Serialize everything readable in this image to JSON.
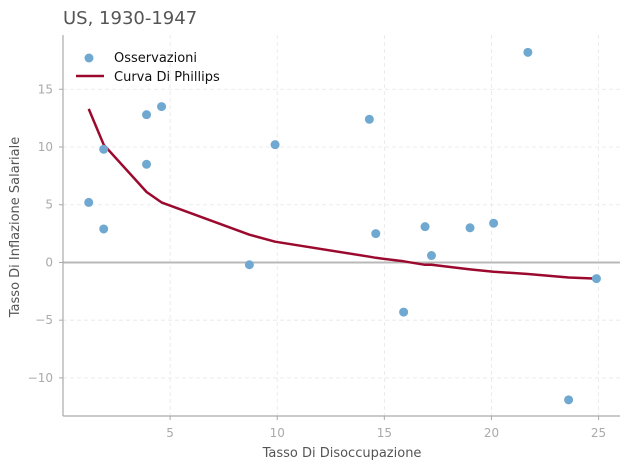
{
  "chart_data": {
    "type": "scatter",
    "title": "US, 1930-1947",
    "xlabel": "Tasso Di Disoccupazione",
    "ylabel": "Tasso Di Inflazione Salariale",
    "xlim": [
      0,
      26
    ],
    "ylim": [
      -13.3,
      19.7
    ],
    "x_ticks": [
      5,
      10,
      15,
      20,
      25
    ],
    "y_ticks": [
      -10,
      -5,
      0,
      5,
      10,
      15
    ],
    "grid": true,
    "legend_position": "top-left",
    "reference_line_y": 0,
    "series": [
      {
        "name": "Osservazioni",
        "kind": "scatter",
        "color": "#6fa8d0",
        "points": [
          {
            "x": 1.2,
            "y": 5.2
          },
          {
            "x": 1.9,
            "y": 9.8
          },
          {
            "x": 1.9,
            "y": 2.9
          },
          {
            "x": 3.9,
            "y": 12.8
          },
          {
            "x": 3.9,
            "y": 8.5
          },
          {
            "x": 4.6,
            "y": 13.5
          },
          {
            "x": 8.7,
            "y": -0.2
          },
          {
            "x": 9.9,
            "y": 10.2
          },
          {
            "x": 14.3,
            "y": 12.4
          },
          {
            "x": 14.6,
            "y": 2.5
          },
          {
            "x": 15.9,
            "y": -4.3
          },
          {
            "x": 16.9,
            "y": 3.1
          },
          {
            "x": 17.2,
            "y": 0.6
          },
          {
            "x": 19.0,
            "y": 3.0
          },
          {
            "x": 20.1,
            "y": 3.4
          },
          {
            "x": 21.7,
            "y": 18.2
          },
          {
            "x": 23.6,
            "y": -11.9
          },
          {
            "x": 24.9,
            "y": -1.4
          }
        ]
      },
      {
        "name": "Curva Di Phillips",
        "kind": "line",
        "color": "#9b0a2e",
        "points": [
          {
            "x": 1.2,
            "y": 13.3
          },
          {
            "x": 1.9,
            "y": 10.2
          },
          {
            "x": 3.9,
            "y": 6.1
          },
          {
            "x": 4.6,
            "y": 5.2
          },
          {
            "x": 8.7,
            "y": 2.4
          },
          {
            "x": 9.9,
            "y": 1.8
          },
          {
            "x": 14.3,
            "y": 0.5
          },
          {
            "x": 14.6,
            "y": 0.4
          },
          {
            "x": 15.9,
            "y": 0.1
          },
          {
            "x": 16.9,
            "y": -0.2
          },
          {
            "x": 17.2,
            "y": -0.2
          },
          {
            "x": 19.0,
            "y": -0.6
          },
          {
            "x": 20.1,
            "y": -0.8
          },
          {
            "x": 21.7,
            "y": -1.0
          },
          {
            "x": 23.6,
            "y": -1.3
          },
          {
            "x": 24.9,
            "y": -1.4
          }
        ]
      }
    ]
  }
}
